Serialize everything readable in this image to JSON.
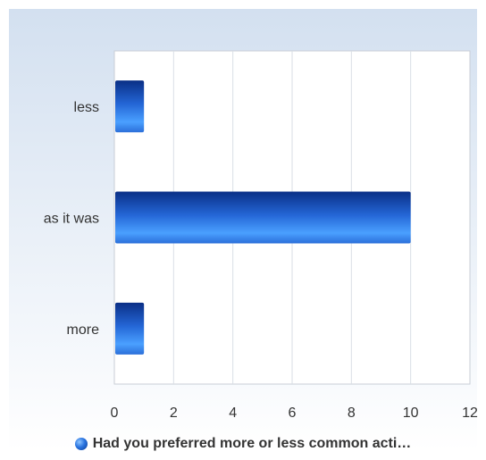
{
  "chart_data": {
    "type": "bar",
    "orientation": "horizontal",
    "categories": [
      "less",
      "as it was",
      "more"
    ],
    "series": [
      {
        "name": "Had you preferred more or less common acti…",
        "values": [
          1,
          10,
          1
        ]
      }
    ],
    "xlim": [
      0,
      12
    ],
    "x_ticks": [
      "0",
      "2",
      "4",
      "6",
      "8",
      "10",
      "12"
    ],
    "grid": true,
    "legend_position": "bottom",
    "colors": {
      "bar_dark": "#0a2f86",
      "bar_light": "#4aa0ff",
      "grid": "#d9dee6",
      "plot_bg": "#ffffff",
      "panel_bg_top": "#d3e0f0",
      "panel_bg_bottom": "#ffffff"
    }
  }
}
